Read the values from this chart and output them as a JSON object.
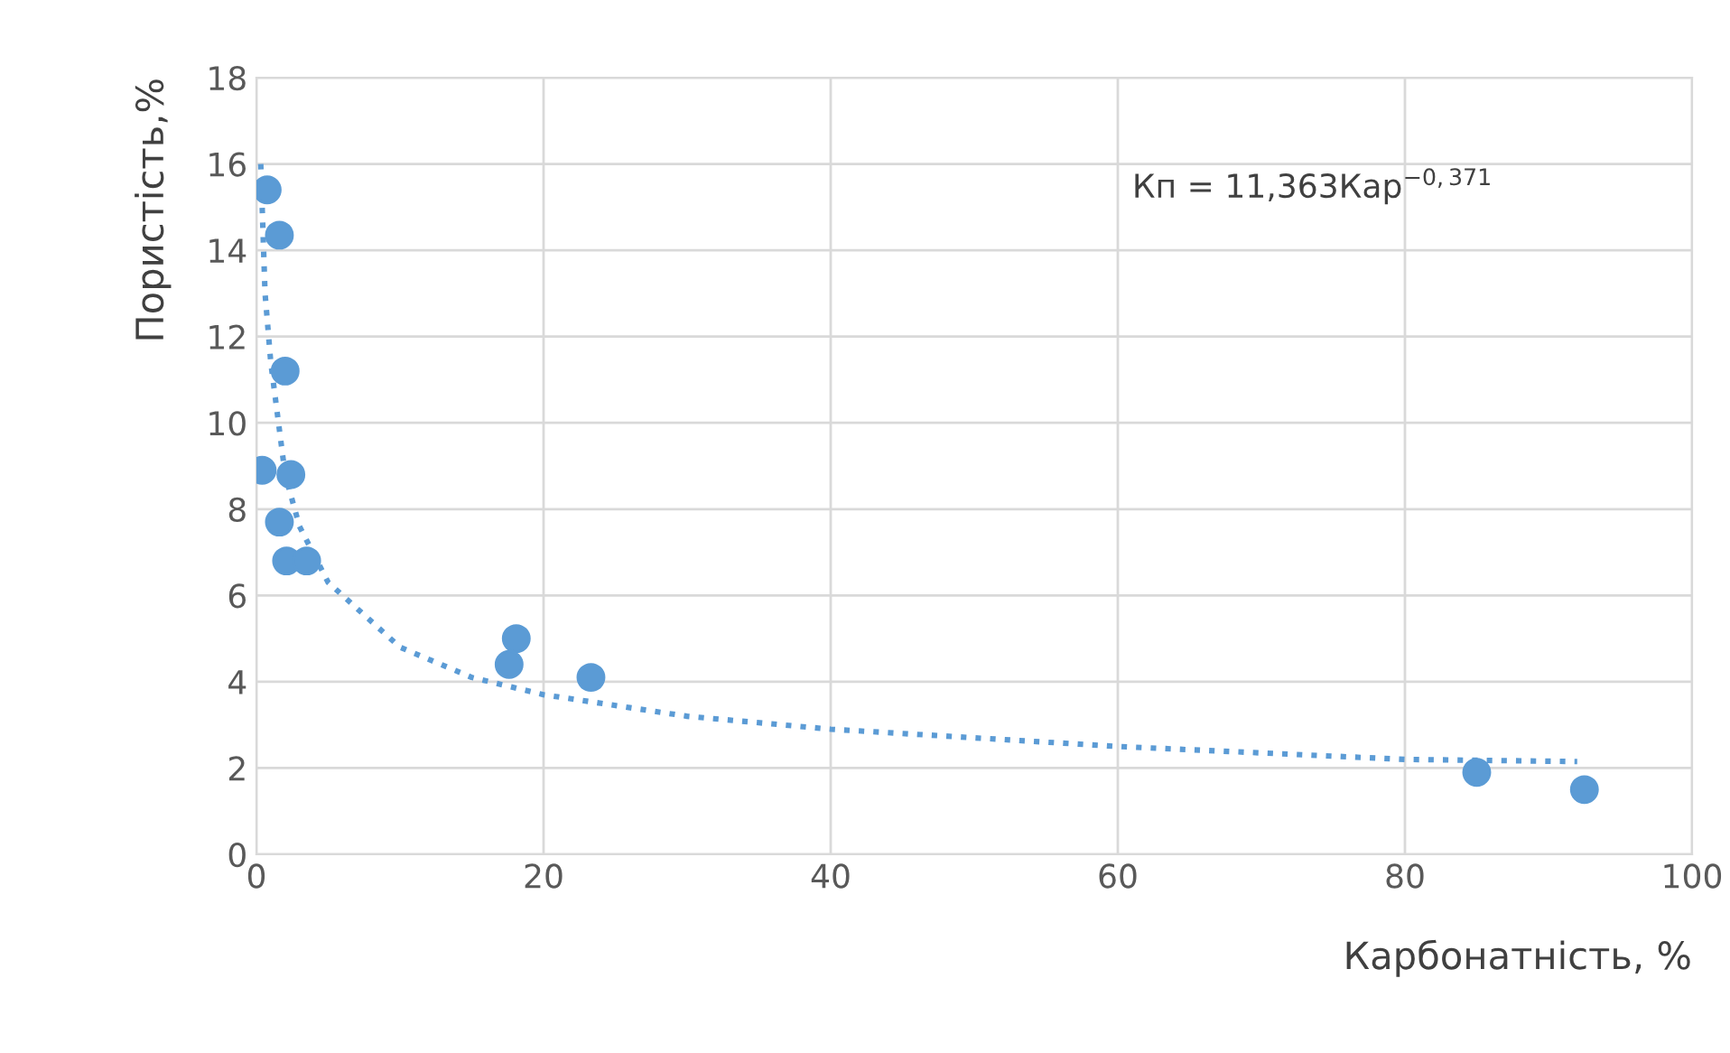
{
  "chart_data": {
    "type": "scatter",
    "xlabel": "Карбонатність, %",
    "ylabel": "Пористість,%",
    "xlim": [
      0,
      100
    ],
    "ylim": [
      0,
      18
    ],
    "xticks": [
      0,
      20,
      40,
      60,
      80,
      100
    ],
    "yticks": [
      0,
      2,
      4,
      6,
      8,
      10,
      12,
      14,
      16,
      18
    ],
    "grid": true,
    "marker": "circle",
    "series": [
      {
        "color": "#5b9bd5",
        "x": [
          0.75,
          1.6,
          2.0,
          0.4,
          2.4,
          1.6,
          2.1,
          3.5,
          18.1,
          17.6,
          23.3,
          85.0,
          92.5
        ],
        "values": [
          15.4,
          14.35,
          11.2,
          8.9,
          8.8,
          7.7,
          6.8,
          6.8,
          5.0,
          4.4,
          4.1,
          1.9,
          1.5
        ]
      },
      {
        "type": "line",
        "line_style": "dotted",
        "marker": "none",
        "color": "#5b9bd5",
        "x": [
          0.3,
          0.6,
          1,
          2,
          3,
          5,
          10,
          15,
          20,
          30,
          40,
          60,
          80,
          92
        ],
        "values": [
          16.0,
          13.0,
          11.4,
          8.8,
          7.6,
          6.3,
          4.8,
          4.1,
          3.7,
          3.2,
          2.9,
          2.5,
          2.2,
          2.15
        ]
      }
    ],
    "annotations": [
      "Кп = 11,363Кар$^{−0,371}$"
    ]
  }
}
